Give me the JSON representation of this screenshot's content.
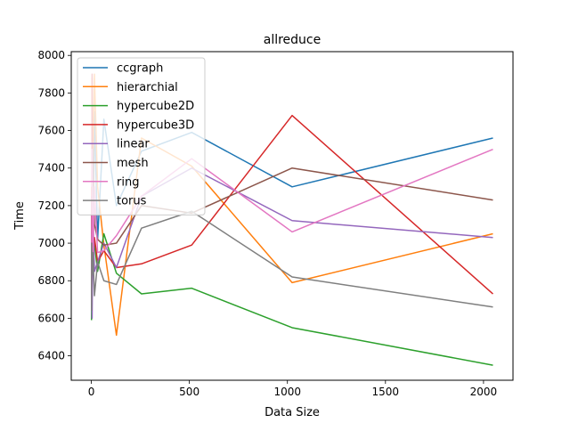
{
  "chart_data": {
    "type": "line",
    "title": "allreduce",
    "xlabel": "Data Size",
    "ylabel": "Time",
    "xlim": [
      -102.35,
      2150.35
    ],
    "ylim": [
      6270,
      8020
    ],
    "xticks": [
      0,
      500,
      1000,
      1500,
      2000
    ],
    "yticks": [
      6400,
      6600,
      6800,
      7000,
      7200,
      7400,
      7600,
      7800,
      8000
    ],
    "grid": false,
    "legend": "upper-left",
    "x": [
      1,
      2,
      4,
      8,
      16,
      32,
      64,
      128,
      256,
      512,
      1024,
      2048
    ],
    "series": [
      {
        "name": "ccgraph",
        "color": "#1f77b4",
        "values": [
          7120,
          6790,
          7300,
          6890,
          7700,
          7020,
          7660,
          7200,
          7490,
          7590,
          7300,
          7560
        ]
      },
      {
        "name": "hierarchial",
        "color": "#ff7f0e",
        "values": [
          7300,
          6880,
          7880,
          7350,
          7900,
          7300,
          6990,
          6510,
          7560,
          7410,
          6790,
          7050
        ]
      },
      {
        "name": "hypercube2D",
        "color": "#2ca02c",
        "values": [
          6590,
          6700,
          7050,
          6900,
          7000,
          6850,
          7050,
          6840,
          6730,
          6760,
          6550,
          6350
        ]
      },
      {
        "name": "hypercube3D",
        "color": "#d62728",
        "values": [
          7250,
          7050,
          7900,
          6890,
          7030,
          6900,
          6960,
          6870,
          6890,
          6990,
          7680,
          6730
        ]
      },
      {
        "name": "linear",
        "color": "#9467bd",
        "values": [
          6700,
          7000,
          6600,
          7150,
          6850,
          6900,
          7000,
          6870,
          7250,
          7400,
          7120,
          7030
        ]
      },
      {
        "name": "mesh",
        "color": "#8c564b",
        "values": [
          6780,
          7220,
          7050,
          7500,
          7100,
          7020,
          6990,
          7000,
          7200,
          7160,
          7400,
          7230
        ]
      },
      {
        "name": "ring",
        "color": "#e377c2",
        "values": [
          6680,
          7100,
          7500,
          6900,
          7300,
          6950,
          6960,
          7040,
          7250,
          7450,
          7060,
          7500
        ]
      },
      {
        "name": "torus",
        "color": "#7f7f7f",
        "values": [
          6640,
          7000,
          6830,
          6950,
          6720,
          6900,
          6800,
          6780,
          7080,
          7170,
          6820,
          6660
        ]
      }
    ]
  }
}
